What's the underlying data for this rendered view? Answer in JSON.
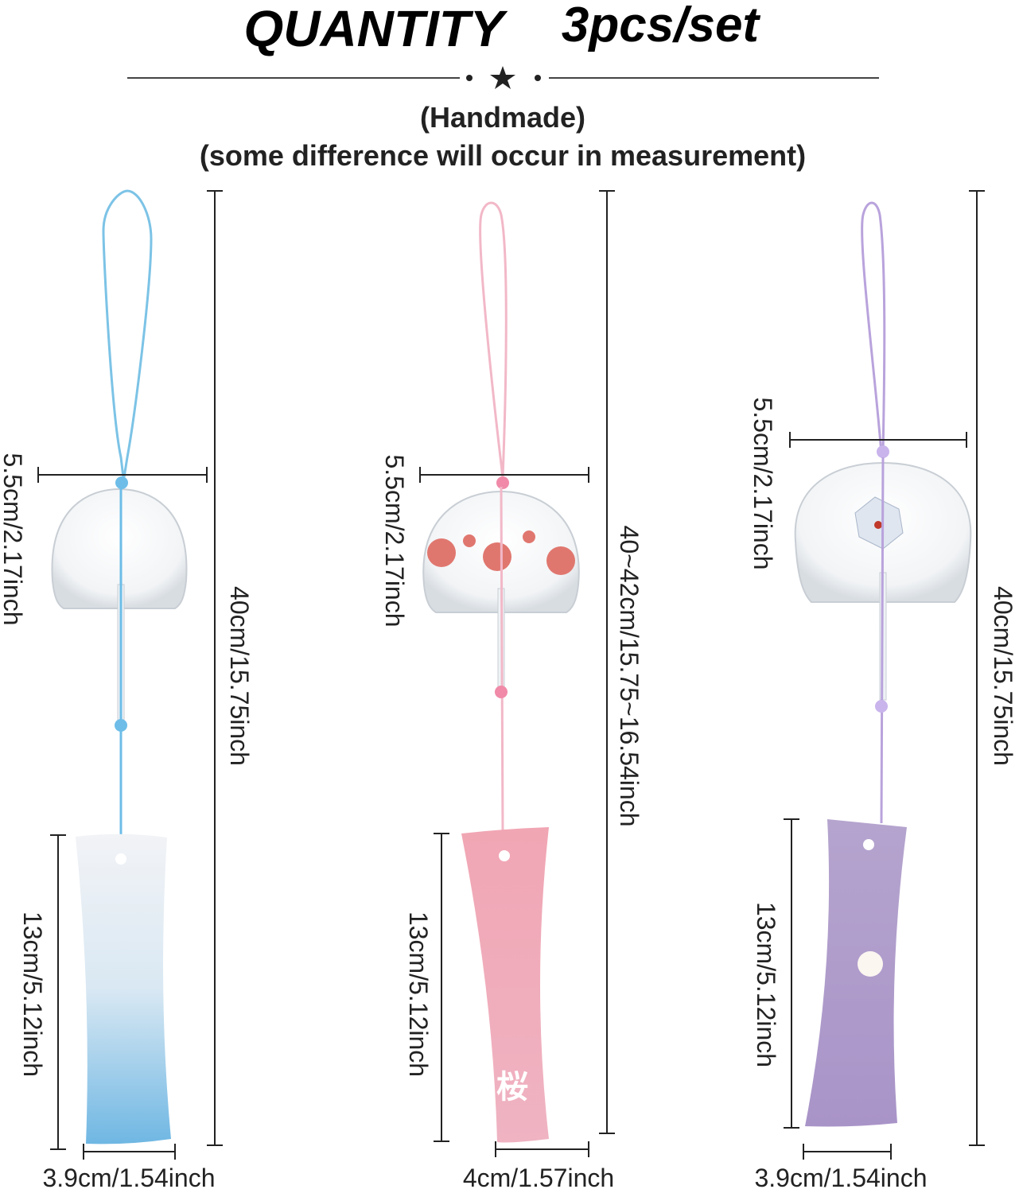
{
  "header": {
    "title": "QUANTITY",
    "quantity": "3pcs/set",
    "note_handmade": "(Handmade)",
    "note_measurement": "(some difference will occur in measurement)"
  },
  "items": [
    {
      "bell_width": "5.5cm/2.17inch",
      "total_length": "40cm/15.75inch",
      "tag_length": "13cm/5.12inch",
      "tag_width": "3.9cm/1.54inch"
    },
    {
      "bell_width": "5.5cm/2.17inch",
      "total_length": "40~42cm/15.75~16.54inch",
      "tag_length": "13cm/5.12inch",
      "tag_width": "4cm/1.57inch",
      "tag_text": "桜"
    },
    {
      "bell_width": "5.5cm/2.17inch",
      "total_length": "40cm/15.75inch",
      "tag_length": "13cm/5.12inch",
      "tag_width": "3.9cm/1.54inch"
    }
  ]
}
